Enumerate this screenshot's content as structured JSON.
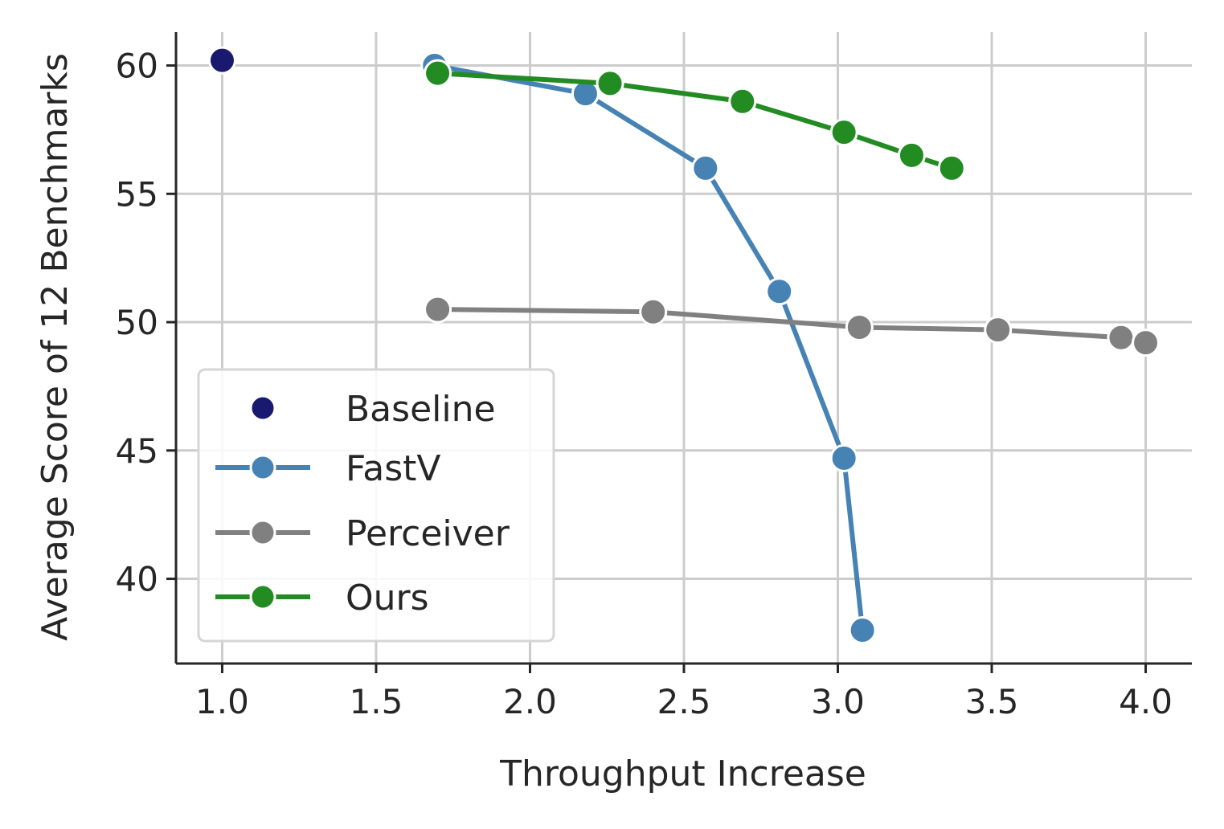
{
  "chart_data": {
    "type": "line",
    "title": "",
    "xlabel": "Throughput Increase",
    "ylabel": "Average Score of 12 Benchmarks",
    "xlim": [
      0.85,
      4.15
    ],
    "ylim": [
      36.7,
      61.3
    ],
    "xticks": [
      1.0,
      1.5,
      2.0,
      2.5,
      3.0,
      3.5,
      4.0
    ],
    "xtick_labels": [
      "1.0",
      "1.5",
      "2.0",
      "2.5",
      "3.0",
      "3.5",
      "4.0"
    ],
    "yticks": [
      40,
      45,
      50,
      55,
      60
    ],
    "ytick_labels": [
      "40",
      "45",
      "50",
      "55",
      "60"
    ],
    "grid": true,
    "legend_position": "lower-left",
    "series": [
      {
        "name": "Baseline",
        "color": "#191970",
        "style": "marker-only",
        "x": [
          1.0
        ],
        "y": [
          60.2
        ]
      },
      {
        "name": "FastV",
        "color": "#4682b4",
        "style": "line-marker",
        "x": [
          1.69,
          2.18,
          2.57,
          2.81,
          3.02,
          3.08
        ],
        "y": [
          60.0,
          58.9,
          56.0,
          51.2,
          44.7,
          38.0
        ]
      },
      {
        "name": "Perceiver",
        "color": "#808080",
        "style": "line-marker",
        "x": [
          1.7,
          2.4,
          3.07,
          3.52,
          3.92,
          4.0
        ],
        "y": [
          50.5,
          50.4,
          49.8,
          49.7,
          49.4,
          49.2
        ]
      },
      {
        "name": "Ours",
        "color": "#228b22",
        "style": "line-marker",
        "x": [
          1.7,
          2.26,
          2.69,
          3.02,
          3.24,
          3.37
        ],
        "y": [
          59.7,
          59.3,
          58.6,
          57.4,
          56.5,
          56.0
        ]
      }
    ]
  }
}
